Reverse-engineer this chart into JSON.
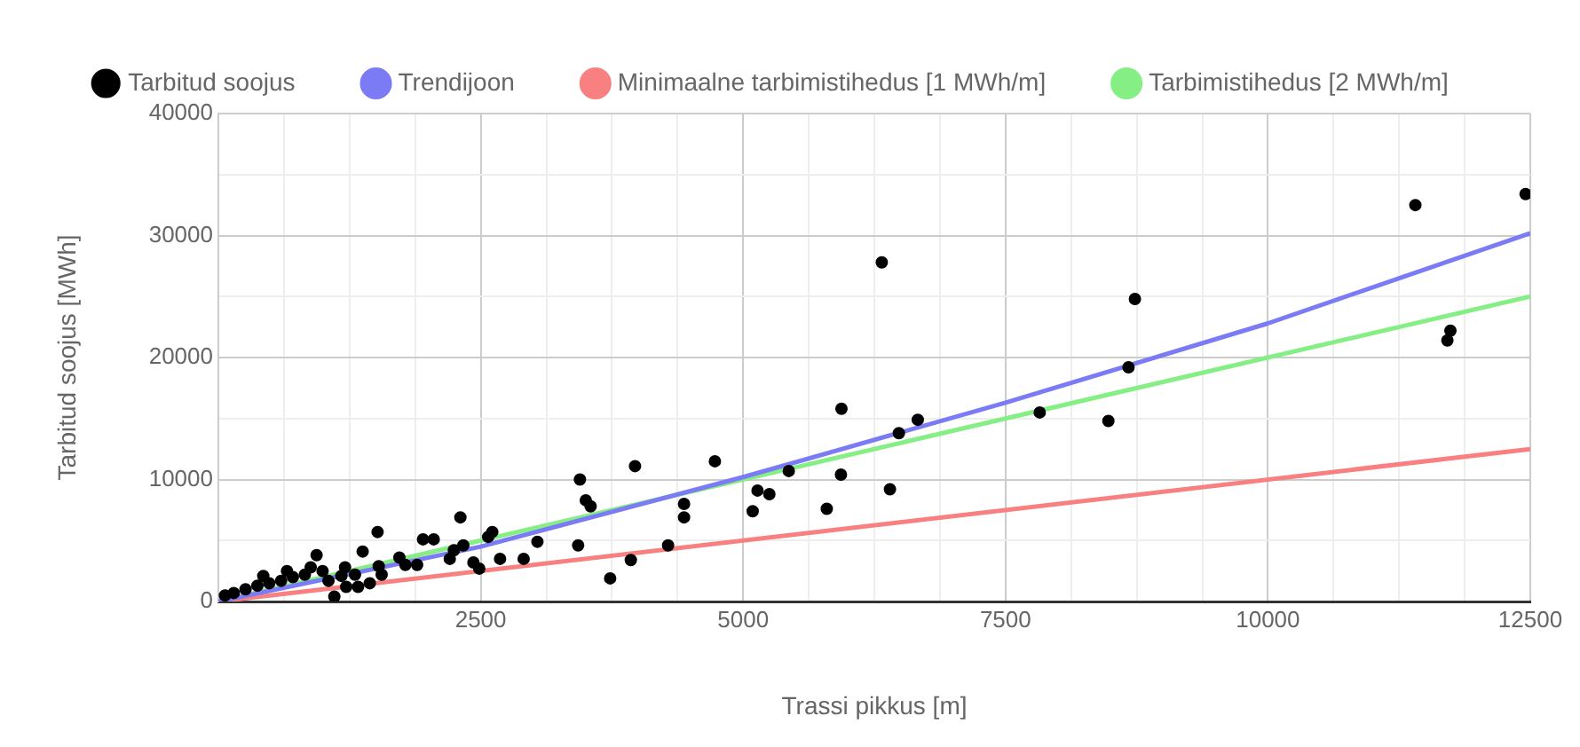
{
  "chart_data": {
    "type": "scatter",
    "xlabel": "Trassi pikkus [m]",
    "ylabel": "Tarbitud soojus [MWh]",
    "legend": "top",
    "grid": true,
    "xlim": [
      0,
      12500
    ],
    "ylim": [
      0,
      40000
    ],
    "xticks": [
      {
        "value": 0,
        "label": null
      },
      {
        "value": 625,
        "label": null
      },
      {
        "value": 1250,
        "label": null
      },
      {
        "value": 1875,
        "label": null
      },
      2500,
      {
        "value": 3125,
        "label": null
      },
      {
        "value": 3750,
        "label": null
      },
      {
        "value": 4375,
        "label": null
      },
      5000,
      {
        "value": 5625,
        "label": null
      },
      {
        "value": 6250,
        "label": null
      },
      {
        "value": 6875,
        "label": null
      },
      7500,
      {
        "value": 8125,
        "label": null
      },
      {
        "value": 8750,
        "label": null
      },
      {
        "value": 9375,
        "label": null
      },
      10000,
      {
        "value": 10625,
        "label": null
      },
      {
        "value": 11250,
        "label": null
      },
      {
        "value": 11875,
        "label": null
      },
      12500
    ],
    "yticks": [
      0,
      {
        "value": 5000,
        "label": null
      },
      10000,
      {
        "value": 15000,
        "label": null
      },
      20000,
      {
        "value": 25000,
        "label": null
      },
      30000,
      {
        "value": 35000,
        "label": null
      },
      40000
    ],
    "series": [
      {
        "name": "Tarbitud soojus",
        "marker": "circle",
        "color": "#000000",
        "x": [
          11405,
          12455,
          8733,
          8672,
          8480,
          11739,
          11710,
          6321,
          5937,
          6664,
          6484,
          7826,
          5932,
          6399,
          5797,
          5435,
          5091,
          5137,
          5250,
          4731,
          4437,
          4437,
          4285,
          3930,
          3733,
          3970,
          3445,
          3501,
          3547,
          3428,
          3040,
          2306,
          1517,
          936,
          1375,
          1950,
          2052,
          2610,
          2571,
          2684,
          2909,
          2244,
          2334,
          2205,
          2486,
          2430,
          1725,
          1782,
          1894,
          1528,
          1556,
          1302,
          1207,
          1105,
          993,
          824,
          710,
          598,
          485,
          372,
          259,
          147,
          63,
          1443,
          1049,
          880,
          1331,
          428,
          654,
          1218,
          1172
        ],
        "values": [
          32500,
          33400,
          24800,
          19200,
          14800,
          22200,
          21400,
          27800,
          15800,
          14900,
          13800,
          15500,
          10400,
          9200,
          7600,
          10700,
          7400,
          9100,
          8800,
          11500,
          8000,
          6900,
          4600,
          3400,
          1900,
          11100,
          10000,
          8300,
          7800,
          4600,
          4900,
          6900,
          5700,
          3800,
          4100,
          5100,
          5100,
          5700,
          5300,
          3500,
          3500,
          4200,
          4600,
          3500,
          2700,
          3200,
          3600,
          3000,
          3000,
          2900,
          2200,
          2200,
          2800,
          400,
          2500,
          2200,
          2000,
          1700,
          1500,
          1300,
          1000,
          700,
          500,
          1500,
          1700,
          2800,
          1200,
          2100,
          2500,
          1200,
          2100
        ]
      },
      {
        "name": "Trendijoon",
        "type": "line",
        "marker": "none",
        "color": "#7b7bf5",
        "x": [
          0,
          2500,
          5000,
          7500,
          10000,
          12500
        ],
        "values": [
          0,
          4500,
          10200,
          16300,
          22800,
          30200
        ]
      },
      {
        "name": "Minimaalne tarbimistihedus [1 MWh/m]",
        "type": "line",
        "marker": "none",
        "color": "#f88080",
        "x": [
          0,
          12500
        ],
        "values": [
          0,
          12500
        ]
      },
      {
        "name": "Tarbimistihedus [2 MWh/m]",
        "type": "line",
        "marker": "none",
        "color": "#85ee85",
        "x": [
          0,
          12500
        ],
        "values": [
          0,
          25000
        ]
      }
    ]
  }
}
